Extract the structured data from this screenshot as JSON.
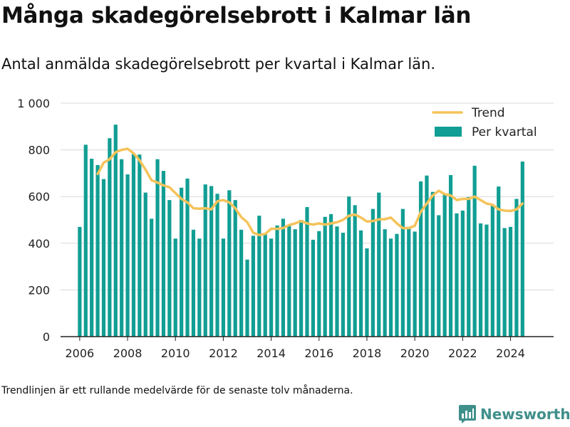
{
  "title": "Många skadegörelsebrott i Kalmar län",
  "subtitle": "Antal anmälda skadegörelsebrott per kvartal i Kalmar län.",
  "footnote": "Trendlinjen är ett rullande medelvärde för de senaste tolv månaderna.",
  "brand": {
    "name": "Newsworthy",
    "color": "#3f8f8a"
  },
  "colors": {
    "bar": "#119e94",
    "trend": "#f5c35a",
    "grid": "#d9d9d9",
    "axis": "#222222"
  },
  "chart_data": {
    "type": "bar",
    "x_start": 2006,
    "x_step": 0.25,
    "series": [
      {
        "name": "Per kvartal",
        "type": "bar",
        "values": [
          470,
          822,
          762,
          735,
          675,
          850,
          908,
          760,
          695,
          782,
          780,
          617,
          505,
          760,
          710,
          585,
          420,
          638,
          677,
          458,
          420,
          652,
          645,
          612,
          420,
          627,
          585,
          458,
          330,
          432,
          518,
          440,
          420,
          476,
          505,
          475,
          460,
          500,
          555,
          415,
          452,
          513,
          525,
          472,
          445,
          600,
          563,
          455,
          378,
          547,
          617,
          460,
          420,
          440,
          547,
          470,
          450,
          665,
          690,
          620,
          520,
          610,
          692,
          528,
          540,
          598,
          732,
          485,
          480,
          560,
          643,
          465,
          470,
          590,
          750
        ]
      },
      {
        "name": "Trend",
        "type": "line",
        "x": [
          2006.75,
          2007.0,
          2007.25,
          2007.5,
          2007.75,
          2008.0,
          2008.25,
          2008.5,
          2008.75,
          2009.0,
          2009.25,
          2009.5,
          2009.75,
          2010.0,
          2010.25,
          2010.5,
          2010.75,
          2011.0,
          2011.25,
          2011.5,
          2011.75,
          2012.0,
          2012.25,
          2012.5,
          2012.75,
          2013.0,
          2013.25,
          2013.5,
          2013.75,
          2014.0,
          2014.25,
          2014.5,
          2014.75,
          2015.0,
          2015.25,
          2015.5,
          2015.75,
          2016.0,
          2016.25,
          2016.5,
          2016.75,
          2017.0,
          2017.25,
          2017.5,
          2017.75,
          2018.0,
          2018.25,
          2018.5,
          2018.75,
          2019.0,
          2019.25,
          2019.5,
          2019.75,
          2020.0,
          2020.25,
          2020.5,
          2020.75,
          2021.0,
          2021.25,
          2021.5,
          2021.75,
          2022.0,
          2022.25,
          2022.5,
          2022.75,
          2023.0,
          2023.25,
          2023.5,
          2023.75,
          2024.0,
          2024.25,
          2024.5
        ],
        "values": [
          697,
          745,
          760,
          790,
          800,
          805,
          785,
          755,
          715,
          670,
          660,
          648,
          640,
          615,
          590,
          575,
          550,
          548,
          550,
          545,
          580,
          585,
          575,
          550,
          512,
          490,
          445,
          435,
          440,
          462,
          462,
          465,
          478,
          485,
          495,
          485,
          480,
          485,
          480,
          485,
          490,
          500,
          518,
          523,
          510,
          493,
          495,
          502,
          503,
          510,
          485,
          465,
          465,
          475,
          535,
          570,
          605,
          625,
          610,
          605,
          585,
          590,
          590,
          600,
          585,
          570,
          565,
          545,
          540,
          538,
          545,
          570
        ]
      }
    ],
    "xlabel": "",
    "ylabel": "",
    "xlim": [
      2005.2,
      2025.8
    ],
    "ylim": [
      0,
      1000
    ],
    "x_ticks": [
      2006,
      2008,
      2010,
      2012,
      2014,
      2016,
      2018,
      2020,
      2022,
      2024
    ],
    "x_tick_labels": [
      "2006",
      "2008",
      "2010",
      "2012",
      "2014",
      "2016",
      "2018",
      "2020",
      "2022",
      "2024"
    ],
    "y_ticks": [
      0,
      200,
      400,
      600,
      800,
      1000
    ],
    "y_tick_labels": [
      "0",
      "200",
      "400",
      "600",
      "800",
      "1 000"
    ],
    "grid": true,
    "legend_position": "top-right"
  }
}
